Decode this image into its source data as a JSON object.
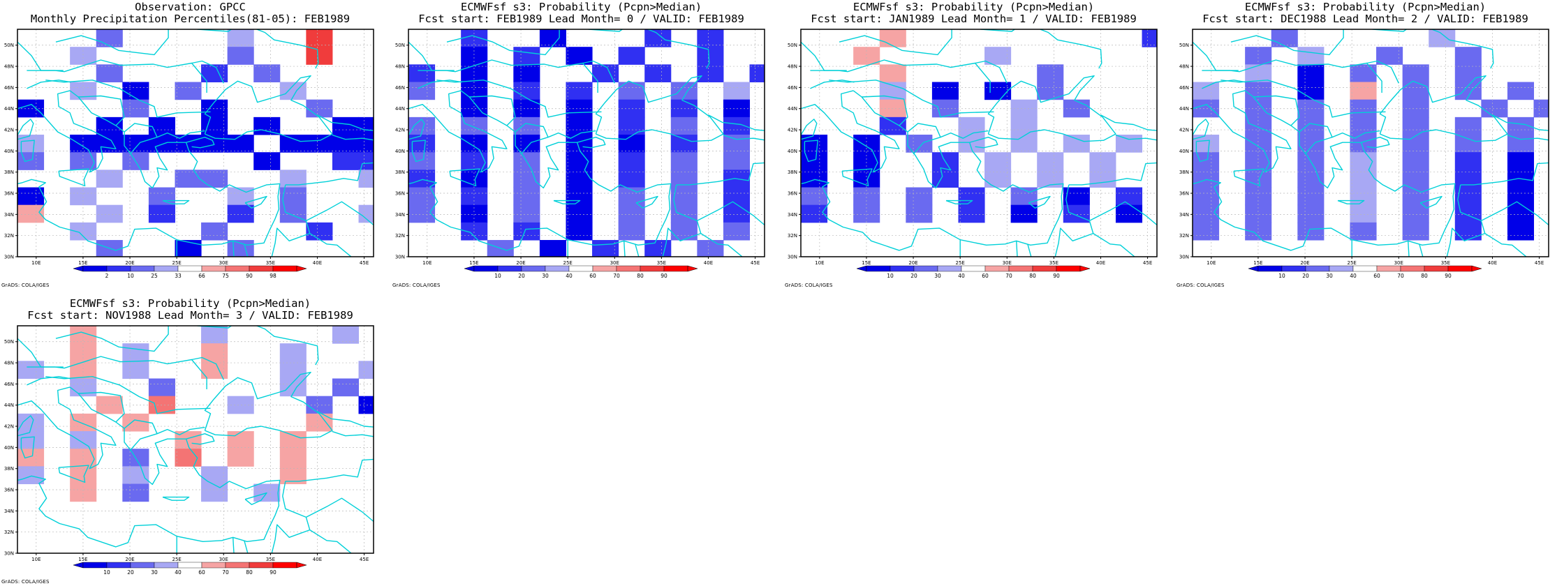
{
  "credit": "GrADS: COLA/IGES",
  "lat_labels": [
    "30N",
    "32N",
    "34N",
    "36N",
    "38N",
    "40N",
    "42N",
    "44N",
    "46N",
    "48N",
    "50N"
  ],
  "lon_labels": [
    "10E",
    "15E",
    "20E",
    "25E",
    "30E",
    "35E",
    "40E",
    "45E"
  ],
  "colors": {
    "lvl1": "#0000e8",
    "lvl2": "#3030f2",
    "lvl3": "#6a6af0",
    "lvl4": "#a8a8f4",
    "lvl6": "#f6a4a4",
    "lvl7": "#f47474",
    "lvl8": "#f03c3c",
    "lvl9": "#ff0000",
    "coast": "#00d0d8",
    "grid": "#b8b8b8"
  },
  "panels": [
    {
      "title1": "Observation: GPCC",
      "title2": "Monthly Precipitation Percentiles(81-05): FEB1989",
      "legend": [
        "2",
        "10",
        "25",
        "33",
        "66",
        "75",
        "90",
        "98"
      ],
      "grid": [
        "...3....4..8..",
        "..4.....3..8..",
        "...3...2.3.....",
        "..4.1.3...4...",
        "1...3..1...3...",
        "...1.1.1.1..111",
        "4.1111111.11111",
        "3.3.3....1..22.",
        "...4..33..4..4.",
        "1.4..3..4.3...4",
        "6..4.2..2.3..4.",
        "..4....3...2...",
        "...3..1.3.....3"
      ]
    },
    {
      "title1": "ECMWFsf s3: Probability (Pcpn>Median)",
      "title2": "Fcst start: FEB1989   Lead Month= 0 / VALID: FEB1989",
      "legend": [
        "10",
        "20",
        "30",
        "40",
        "60",
        "70",
        "80",
        "90"
      ],
      "grid": [
        "..2..1...2.2..",
        "..1.2.1.2..2..",
        "2.1.1..2.2.2.2",
        "3.1.2.2.3.3.4.",
        "..1.1.1.2.2.1.",
        "3.3.3.1.2.3.2.",
        "2.1.1.1.1.2.3.",
        "3.2.3.1.2.3.3.",
        "2.1.3.1.2.3.2.",
        "3.2.3.1.3.3.2.",
        "3.1.3.1.3.3.2.",
        "..2.2.1.3.3.3.",
        "...3.1.2.2.3.."
      ]
    },
    {
      "title1": "ECMWFsf s3: Probability (Pcpn>Median)",
      "title2": "Fcst start: JAN1989   Lead Month= 1 / VALID: FEB1989",
      "legend": [
        "10",
        "20",
        "30",
        "40",
        "60",
        "70",
        "80",
        "90"
      ],
      "grid": [
        "...6.........2",
        "..6....4......",
        "...6.....3....",
        "...4.1.1.3....",
        "...6.3..4.3...",
        "...2..4.4.....",
        "1.1.3.4.4.4.4.",
        "1.1..2.4.4.4..",
        "1.1..2.4.4.4..",
        "3.3.3.2.3.1.2.",
        "2.3.3.2.1.2.1.",
        "..............",
        ".............."
      ]
    },
    {
      "title1": "ECMWFsf s3: Probability (Pcpn>Median)",
      "title2": "Fcst start: DEC1988   Lead Month= 2 / VALID: FEB1989",
      "legend": [
        "10",
        "20",
        "30",
        "40",
        "60",
        "70",
        "80",
        "90"
      ],
      "grid": [
        "...3.....4...",
        "..3.4..3..3...",
        "..4.1.3.3.3...",
        "4.3.1.6.3.3.3.",
        "3.3.3.3.3..3.3",
        "..3.3.3.3.3.3.",
        "4.3.3.3.3.3.3.",
        "3.3.3.4.3.2.1.",
        "3.3.3.4.3.2.1.",
        "3.3.3.4.3.2.1.",
        "3.3.3.4.3.2.1.",
        "3.3.3.3.3.2.1.",
        ".............."
      ]
    },
    {
      "title1": "ECMWFsf s3: Probability (Pcpn>Median)",
      "title2": "Fcst start: NOV1988   Lead Month= 3 / VALID: FEB1989",
      "legend": [
        "10",
        "20",
        "30",
        "40",
        "60",
        "70",
        "80",
        "90"
      ],
      "grid": [
        "..6....4....4.",
        "..6.4..6..4...",
        "4.6.4..6..4..4",
        "..4..3....4.3.",
        "...6.7..4..3.1",
        "4.6.6......6..",
        "4.4...6.6.6...",
        "6.6.3.7.6.6...",
        "4.6.4..4..6...",
        "..6.3..4.4....",
        "..............",
        "..............",
        ".............."
      ]
    }
  ]
}
